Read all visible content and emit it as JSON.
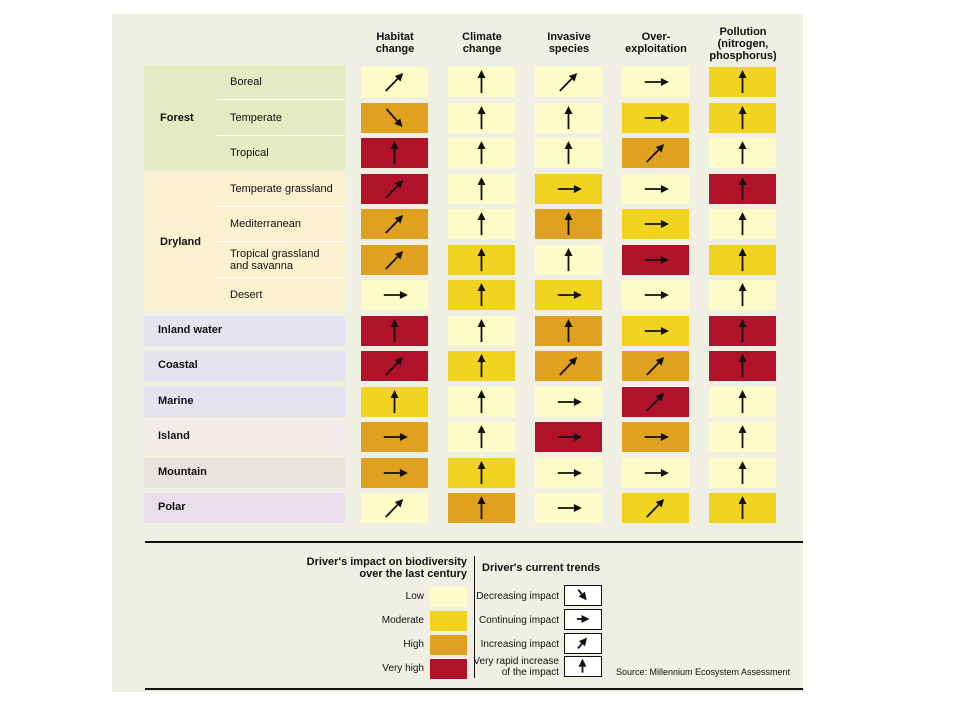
{
  "colors": {
    "low": "#fdfbc6",
    "moderate": "#f0d420",
    "high": "#e0a020",
    "very_high": "#b0122a",
    "forest_band": "#e4ebc2",
    "dryland_band": "#fbf1cf",
    "inland_water_band": "#e4e4f0",
    "coastal_band": "#e4e4f0",
    "marine_band": "#e4e4f0",
    "island_band": "#f4ecea",
    "mountain_band": "#e6e4dc",
    "polar_band": "#eadeec"
  },
  "chart_data": {
    "type": "table",
    "columns": [
      {
        "key": "habitat",
        "lines": [
          "Habitat",
          "change"
        ]
      },
      {
        "key": "climate",
        "lines": [
          "Climate",
          "change"
        ]
      },
      {
        "key": "invasive",
        "lines": [
          "Invasive",
          "species"
        ]
      },
      {
        "key": "over",
        "lines": [
          "Over-",
          "exploitation"
        ]
      },
      {
        "key": "pollution",
        "lines": [
          "Pollution",
          "(nitrogen,",
          "phosphorus)"
        ]
      }
    ],
    "groups": [
      {
        "name": "Forest",
        "band": "forest_band",
        "rows": [
          {
            "label": [
              "Boreal"
            ],
            "cells": [
              [
                "low",
                "increasing"
              ],
              [
                "low",
                "very_rapid"
              ],
              [
                "low",
                "increasing"
              ],
              [
                "low",
                "continuing"
              ],
              [
                "moderate",
                "very_rapid"
              ]
            ]
          },
          {
            "label": [
              "Temperate"
            ],
            "cells": [
              [
                "high",
                "decreasing"
              ],
              [
                "low",
                "very_rapid"
              ],
              [
                "low",
                "very_rapid"
              ],
              [
                "moderate",
                "continuing"
              ],
              [
                "moderate",
                "very_rapid"
              ]
            ]
          },
          {
            "label": [
              "Tropical"
            ],
            "cells": [
              [
                "very_high",
                "very_rapid"
              ],
              [
                "low",
                "very_rapid"
              ],
              [
                "low",
                "very_rapid"
              ],
              [
                "high",
                "increasing"
              ],
              [
                "low",
                "very_rapid"
              ]
            ]
          }
        ]
      },
      {
        "name": "Dryland",
        "band": "dryland_band",
        "rows": [
          {
            "label": [
              "Temperate grassland"
            ],
            "cells": [
              [
                "very_high",
                "increasing"
              ],
              [
                "low",
                "very_rapid"
              ],
              [
                "moderate",
                "continuing"
              ],
              [
                "low",
                "continuing"
              ],
              [
                "very_high",
                "very_rapid"
              ]
            ]
          },
          {
            "label": [
              "Mediterranean"
            ],
            "cells": [
              [
                "high",
                "increasing"
              ],
              [
                "low",
                "very_rapid"
              ],
              [
                "high",
                "very_rapid"
              ],
              [
                "moderate",
                "continuing"
              ],
              [
                "low",
                "very_rapid"
              ]
            ]
          },
          {
            "label": [
              "Tropical grassland",
              "and savanna"
            ],
            "cells": [
              [
                "high",
                "increasing"
              ],
              [
                "moderate",
                "very_rapid"
              ],
              [
                "low",
                "very_rapid"
              ],
              [
                "very_high",
                "continuing"
              ],
              [
                "moderate",
                "very_rapid"
              ]
            ]
          },
          {
            "label": [
              "Desert"
            ],
            "cells": [
              [
                "low",
                "continuing"
              ],
              [
                "moderate",
                "very_rapid"
              ],
              [
                "moderate",
                "continuing"
              ],
              [
                "low",
                "continuing"
              ],
              [
                "low",
                "very_rapid"
              ]
            ]
          }
        ]
      },
      {
        "name": "Inland water",
        "band": "inland_water_band",
        "rows": [
          {
            "label": [],
            "cells": [
              [
                "very_high",
                "very_rapid"
              ],
              [
                "low",
                "very_rapid"
              ],
              [
                "high",
                "very_rapid"
              ],
              [
                "moderate",
                "continuing"
              ],
              [
                "very_high",
                "very_rapid"
              ]
            ]
          }
        ]
      },
      {
        "name": "Coastal",
        "band": "coastal_band",
        "rows": [
          {
            "label": [],
            "cells": [
              [
                "very_high",
                "increasing"
              ],
              [
                "moderate",
                "very_rapid"
              ],
              [
                "high",
                "increasing"
              ],
              [
                "high",
                "increasing"
              ],
              [
                "very_high",
                "very_rapid"
              ]
            ]
          }
        ]
      },
      {
        "name": "Marine",
        "band": "marine_band",
        "rows": [
          {
            "label": [],
            "cells": [
              [
                "moderate",
                "very_rapid"
              ],
              [
                "low",
                "very_rapid"
              ],
              [
                "low",
                "continuing"
              ],
              [
                "very_high",
                "increasing"
              ],
              [
                "low",
                "very_rapid"
              ]
            ]
          }
        ]
      },
      {
        "name": "Island",
        "band": "island_band",
        "rows": [
          {
            "label": [],
            "cells": [
              [
                "high",
                "continuing"
              ],
              [
                "low",
                "very_rapid"
              ],
              [
                "very_high",
                "continuing"
              ],
              [
                "high",
                "continuing"
              ],
              [
                "low",
                "very_rapid"
              ]
            ]
          }
        ]
      },
      {
        "name": "Mountain",
        "band": "mountain_band",
        "rows": [
          {
            "label": [],
            "cells": [
              [
                "high",
                "continuing"
              ],
              [
                "moderate",
                "very_rapid"
              ],
              [
                "low",
                "continuing"
              ],
              [
                "low",
                "continuing"
              ],
              [
                "low",
                "very_rapid"
              ]
            ]
          }
        ]
      },
      {
        "name": "Polar",
        "band": "polar_band",
        "rows": [
          {
            "label": [],
            "cells": [
              [
                "low",
                "increasing"
              ],
              [
                "high",
                "very_rapid"
              ],
              [
                "low",
                "continuing"
              ],
              [
                "moderate",
                "increasing"
              ],
              [
                "moderate",
                "very_rapid"
              ]
            ]
          }
        ]
      }
    ]
  },
  "legend": {
    "impact_title_1": "Driver's impact on biodiversity",
    "impact_title_2": "over the last century",
    "trend_title": "Driver's current trends",
    "impact_items": [
      {
        "level": "low",
        "label": "Low"
      },
      {
        "level": "moderate",
        "label": "Moderate"
      },
      {
        "level": "high",
        "label": "High"
      },
      {
        "level": "very_high",
        "label": "Very high"
      }
    ],
    "trend_items": [
      {
        "trend": "decreasing",
        "lines": [
          "Decreasing impact"
        ]
      },
      {
        "trend": "continuing",
        "lines": [
          "Continuing impact"
        ]
      },
      {
        "trend": "increasing",
        "lines": [
          "Increasing impact"
        ]
      },
      {
        "trend": "very_rapid",
        "lines": [
          "Very rapid increase",
          "of the impact"
        ]
      }
    ]
  },
  "source": "Source: Millennium Ecosystem Assessment"
}
